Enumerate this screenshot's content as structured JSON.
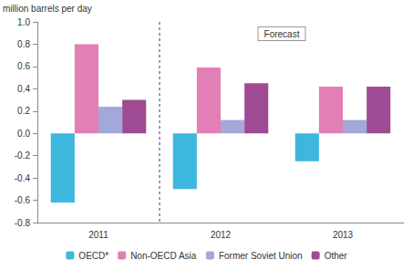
{
  "chart_data": {
    "type": "bar",
    "ylabel": "million barrels per day",
    "categories": [
      "2011",
      "2012",
      "2013"
    ],
    "series": [
      {
        "name": "OECD*",
        "color": "#3db7dd",
        "values": [
          -0.62,
          -0.5,
          -0.25
        ]
      },
      {
        "name": "Non-OECD Asia",
        "color": "#e27fb4",
        "values": [
          0.8,
          0.59,
          0.42
        ]
      },
      {
        "name": "Former Soviet Union",
        "color": "#a2a9d9",
        "values": [
          0.24,
          0.12,
          0.12
        ]
      },
      {
        "name": "Other",
        "color": "#9f4b93",
        "values": [
          0.3,
          0.45,
          0.42
        ]
      }
    ],
    "annotations": [
      "Forecast"
    ],
    "ylim": [
      -0.8,
      1.0
    ],
    "yticks": [
      {
        "value": -0.8,
        "label": "-0.8"
      },
      -0.6,
      -0.4,
      -0.2,
      {
        "value": 0,
        "label": "0.0"
      },
      0.2,
      0.4,
      0.6,
      0.8,
      {
        "value": 1,
        "label": "1.0"
      }
    ],
    "grid": false,
    "legend": "bottom"
  }
}
